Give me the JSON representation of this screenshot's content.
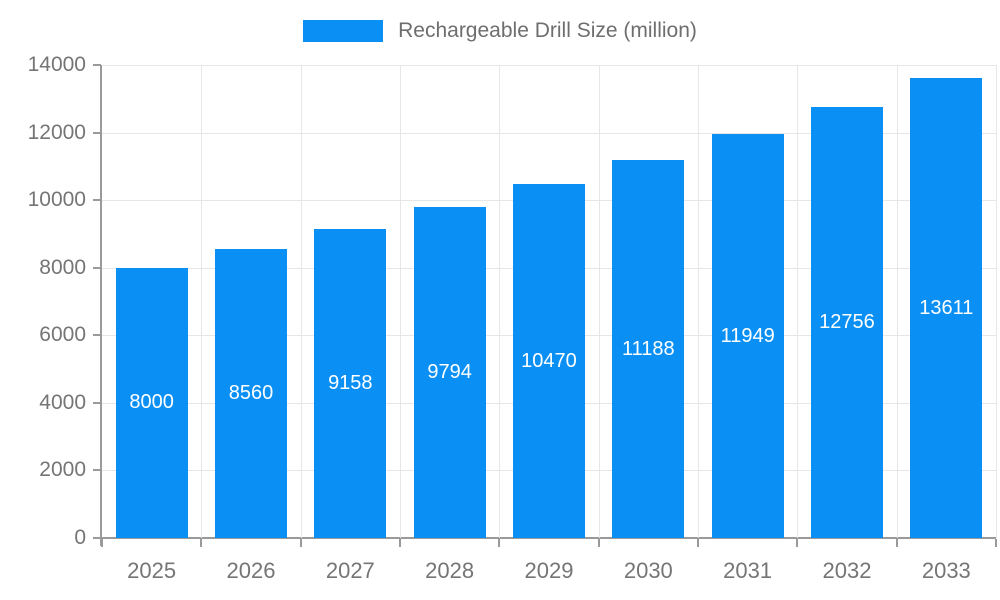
{
  "chart_data": {
    "type": "bar",
    "title": "Rechargeable Drill Size (million)",
    "categories": [
      "2025",
      "2026",
      "2027",
      "2028",
      "2029",
      "2030",
      "2031",
      "2032",
      "2033"
    ],
    "values": [
      8000,
      8560,
      9158,
      9794,
      10470,
      11188,
      11949,
      12756,
      13611
    ],
    "xlabel": "",
    "ylabel": "",
    "ylim": [
      0,
      14000
    ],
    "ytick_step": 2000,
    "grid": true,
    "legend_position": "top-center",
    "value_labels": "inside-bar-centered"
  },
  "colors": {
    "bar": "#0a90f5",
    "grid": "#e6e6e6",
    "axis": "#9a9a9a",
    "tick_label_text": "#757575",
    "legend_text": "#6e6e6e",
    "bar_label_text": "#ffffff",
    "background": "#ffffff"
  }
}
